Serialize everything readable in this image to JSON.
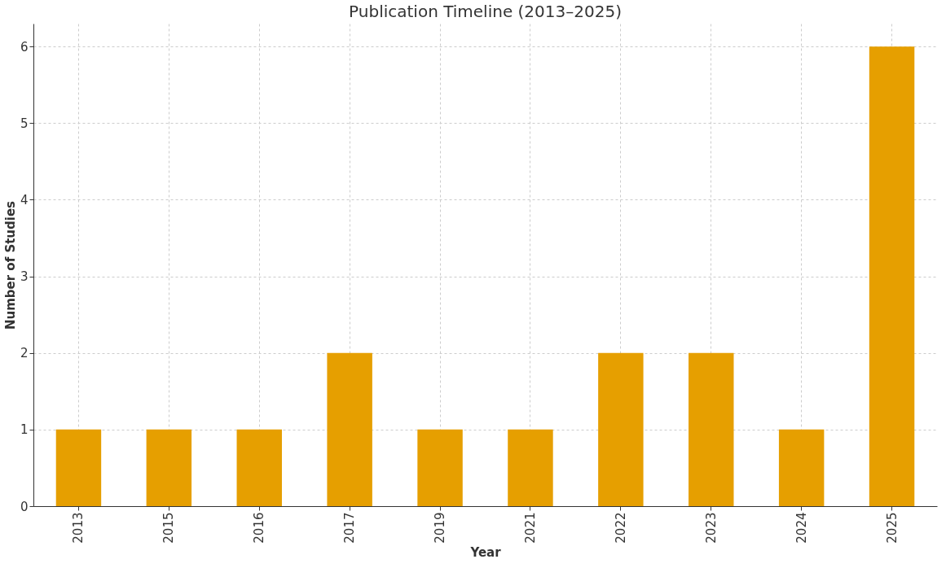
{
  "chart_data": {
    "type": "bar",
    "title": "Publication Timeline (2013–2025)",
    "xlabel": "Year",
    "ylabel": "Number of Studies",
    "categories": [
      "2013",
      "2015",
      "2016",
      "2017",
      "2019",
      "2021",
      "2022",
      "2023",
      "2024",
      "2025"
    ],
    "values": [
      1,
      1,
      1,
      2,
      1,
      1,
      2,
      2,
      1,
      6
    ],
    "color": "#e69f00",
    "ylim": [
      0,
      6.3
    ],
    "yticks": [
      0,
      1,
      2,
      3,
      4,
      5,
      6
    ],
    "grid": true
  }
}
